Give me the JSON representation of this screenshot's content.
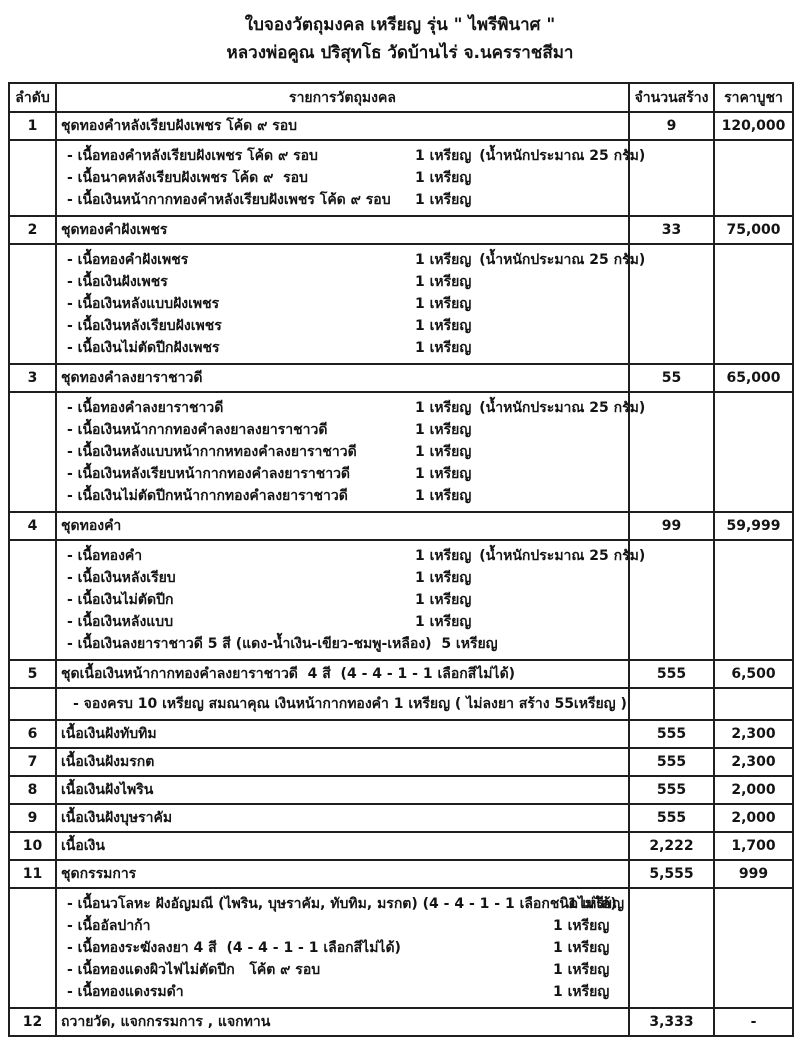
{
  "title": {
    "line1": "ใบจองวัตถุมงคล เหรียญ รุ่น \" ไพรีพินาศ \"",
    "line2": "หลวงพ่อคูณ ปริสุทโธ วัดบ้านไร่ จ.นครราชสีมา"
  },
  "table": {
    "headers": [
      "ลำดับ",
      "รายการวัตถุมงคล",
      "จำนวนสร้าง",
      "ราคาบูชา"
    ],
    "rows": [
      {
        "no": "1",
        "name": "ชุดทองคำหลังเรียบฝังเพชร โค้ด ๙ รอบ",
        "qty": "9",
        "price": "120,000",
        "subs": [
          {
            "label": "- เนื้อทองคำหลังเรียบฝังเพชร โค้ด ๙ รอบ",
            "qty": "1 เหรียญ",
            "note": "(น้ำหนักประมาณ 25 กรัม)"
          },
          {
            "label": "- เนื้อนาคหลังเรียบฝังเพชร โค้ด ๙  รอบ",
            "qty": "1 เหรียญ"
          },
          {
            "label": "- เนื้อเงินหน้ากากทองคำหลังเรียบฝังเพชร โค้ด ๙ รอบ",
            "qty": "1 เหรียญ"
          }
        ]
      },
      {
        "no": "2",
        "name": "ชุดทองคำฝังเพชร",
        "qty": "33",
        "price": "75,000",
        "subs": [
          {
            "label": "- เนื้อทองคำฝังเพชร",
            "qty": "1 เหรียญ",
            "note": "(น้ำหนักประมาณ 25 กรัม)"
          },
          {
            "label": "- เนื้อเงินฝังเพชร",
            "qty": "1 เหรียญ"
          },
          {
            "label": "- เนื้อเงินหลังแบบฝังเพชร",
            "qty": "1 เหรียญ"
          },
          {
            "label": "- เนื้อเงินหลังเรียบฝังเพชร",
            "qty": "1 เหรียญ"
          },
          {
            "label": "- เนื้อเงินไม่ตัดปีกฝังเพชร",
            "qty": "1 เหรียญ"
          }
        ]
      },
      {
        "no": "3",
        "name": "ชุดทองคำลงยาราชาวดี",
        "qty": "55",
        "price": "65,000",
        "subs": [
          {
            "label": "- เนื้อทองคำลงยาราชาวดี",
            "qty": "1 เหรียญ",
            "note": "(น้ำหนักประมาณ 25 กรัม)"
          },
          {
            "label": "- เนื้อเงินหน้ากากทองคำลงยาลงยาราชาวดี",
            "qty": "1 เหรียญ"
          },
          {
            "label": "- เนื้อเงินหลังแบบหน้ากากหทองคำลงยาราชาวดี",
            "qty": "1 เหรียญ"
          },
          {
            "label": "- เนื้อเงินหลังเรียบหน้ากากทองคำลงยาราชาวดี",
            "qty": "1 เหรียญ"
          },
          {
            "label": "- เนื้อเงินไม่ตัดปีกหน้ากากทองคำลงยาราชาวดี",
            "qty": "1 เหรียญ"
          }
        ]
      },
      {
        "no": "4",
        "name": "ชุดทองคำ",
        "qty": "99",
        "price": "59,999",
        "subs": [
          {
            "label": "- เนื้อทองคำ",
            "qty": "1 เหรียญ",
            "note": "(น้ำหนักประมาณ 25 กรัม)"
          },
          {
            "label": "- เนื้อเงินหลังเรียบ",
            "qty": "1 เหรียญ"
          },
          {
            "label": "- เนื้อเงินไม่ตัดปีก",
            "qty": "1 เหรียญ"
          },
          {
            "label": "- เนื้อเงินหลังแบบ",
            "qty": "1 เหรียญ"
          },
          {
            "label": "- เนื้อเงินลงยาราชาวดี 5 สี (แดง-น้ำเงิน-เขียว-ชมพู-เหลือง)  ",
            "qty": "5 เหรียญ"
          }
        ]
      },
      {
        "no": "5",
        "name": "ชุดเนื้อเงินหน้ากากทองคำลงยาราชาวดี  4 สี  (4 - 4 - 1 - 1 เลือกสีไม่ได้)",
        "qty": "555",
        "price": "6,500",
        "subs": [
          {
            "label": "- จองครบ 10 เหรียญ สมณาคุณ เงินหน้ากากทองคำ 1 เหรียญ ( ไม่ลงยา สร้าง 55เหรียญ )"
          }
        ]
      },
      {
        "no": "6",
        "name": "เนื้อเงินฝังทับทิม",
        "qty": "555",
        "price": "2,300"
      },
      {
        "no": "7",
        "name": "เนื้อเงินฝังมรกต",
        "qty": "555",
        "price": "2,300"
      },
      {
        "no": "8",
        "name": "เนื้อเงินฝังไพริน",
        "qty": "555",
        "price": "2,000"
      },
      {
        "no": "9",
        "name": "เนื้อเงินฝังบุษราคัม",
        "qty": "555",
        "price": "2,000"
      },
      {
        "no": "10",
        "name": "เนื้อเงิน",
        "qty": "2,222",
        "price": "1,700"
      },
      {
        "no": "11",
        "name": "ชุดกรรมการ",
        "qty": "5,555",
        "price": "999",
        "subs": [
          {
            "label": "- เนื้อนวโลหะ ฝังอัญมณี (ไพริน, บุษราคัม, ทับทิม, มรกต) (4 - 4 - 1 - 1 เลือกชนิดไม่ได้) ",
            "qty": "1 เหรียญ"
          },
          {
            "label": "- เนื้ออัลปาก้า",
            "qty": "1 เหรียญ"
          },
          {
            "label": "- เนื้อทองระฆังลงยา 4 สี  (4 - 4 - 1 - 1 เลือกสีไม่ได้)",
            "qty": "1 เหรียญ"
          },
          {
            "label": "- เนื้อทองแดงผิวไฟไม่ตัดปีก   โค้ต ๙ รอบ",
            "qty": "1 เหรียญ"
          },
          {
            "label": "- เนื้อทองแดงรมดำ",
            "qty": "1 เหรียญ"
          }
        ]
      },
      {
        "no": "12",
        "name": "ถวายวัด, แจกกรรมการ , แจกทาน",
        "qty": "3,333",
        "price": "-"
      }
    ]
  }
}
